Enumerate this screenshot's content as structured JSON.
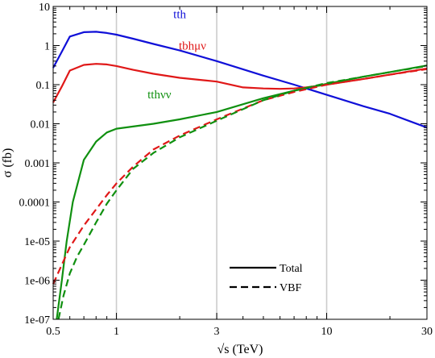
{
  "chart_data": {
    "type": "line",
    "xlabel": "√s (TeV)",
    "ylabel": "σ (fb)",
    "xscale": "log",
    "yscale": "log",
    "xlim": [
      0.5,
      30
    ],
    "ylim": [
      1e-07,
      10
    ],
    "x_ticks": [
      0.5,
      1,
      3,
      10,
      30
    ],
    "x_tick_labels": [
      "0.5",
      "1",
      "3",
      "10",
      "30"
    ],
    "y_ticks": [
      1e-07,
      1e-06,
      1e-05,
      0.0001,
      0.001,
      0.01,
      0.1,
      1,
      10
    ],
    "y_tick_labels": [
      "1e-07",
      "1e-06",
      "1e-05",
      "0.0001",
      "0.001",
      "0.01",
      "0.1",
      "1",
      "10"
    ],
    "vertical_gridlines_at": [
      1,
      3,
      10
    ],
    "legend": {
      "placement": "bottom-center",
      "entries": [
        {
          "label": "Total",
          "linestyle": "solid"
        },
        {
          "label": "VBF",
          "linestyle": "dashed"
        }
      ]
    },
    "colors": {
      "tth": "#1010d8",
      "tbhmuv": "#e01818",
      "tthvv": "#109010"
    },
    "series": [
      {
        "name": "tth",
        "key": "tth",
        "linestyle": "solid",
        "label_at": {
          "x": 2.0,
          "y": 5.0
        },
        "x": [
          0.5,
          0.55,
          0.6,
          0.7,
          0.8,
          0.9,
          1.0,
          1.2,
          1.5,
          2,
          3,
          5,
          7,
          10,
          15,
          20,
          30
        ],
        "y": [
          0.27,
          0.7,
          1.7,
          2.2,
          2.25,
          2.1,
          1.9,
          1.5,
          1.1,
          0.75,
          0.4,
          0.17,
          0.1,
          0.055,
          0.028,
          0.018,
          0.008
        ]
      },
      {
        "name": "tbhμν",
        "key": "tbhmuv",
        "linestyle": "solid",
        "label_at": {
          "x": 2.3,
          "y": 0.78
        },
        "x": [
          0.5,
          0.55,
          0.6,
          0.7,
          0.8,
          0.9,
          1.0,
          1.2,
          1.5,
          2,
          3,
          4,
          5,
          6,
          7,
          8,
          10,
          15,
          20,
          30
        ],
        "y": [
          0.035,
          0.09,
          0.23,
          0.32,
          0.34,
          0.33,
          0.3,
          0.24,
          0.19,
          0.15,
          0.12,
          0.085,
          0.08,
          0.078,
          0.08,
          0.085,
          0.1,
          0.14,
          0.18,
          0.26
        ]
      },
      {
        "name": "tthνν",
        "key": "tthvv",
        "linestyle": "solid",
        "label_at": {
          "x": 1.6,
          "y": 0.045
        },
        "x": [
          0.52,
          0.55,
          0.58,
          0.62,
          0.7,
          0.8,
          0.9,
          1.0,
          1.2,
          1.5,
          2,
          3,
          5,
          7,
          10,
          15,
          20,
          30
        ],
        "y": [
          1e-07,
          1e-06,
          1e-05,
          0.0001,
          0.0012,
          0.0035,
          0.006,
          0.0075,
          0.0085,
          0.01,
          0.013,
          0.02,
          0.045,
          0.07,
          0.105,
          0.16,
          0.21,
          0.31
        ]
      },
      {
        "name": "tbhμν VBF",
        "key": "tbhmuv",
        "linestyle": "dashed",
        "x": [
          0.5,
          0.55,
          0.6,
          0.7,
          0.8,
          0.9,
          1.0,
          1.2,
          1.5,
          2,
          3,
          5,
          7,
          10,
          15,
          20,
          30
        ],
        "y": [
          8e-07,
          2.5e-06,
          7e-06,
          2.5e-05,
          6.5e-05,
          0.00015,
          0.0003,
          0.0008,
          0.0022,
          0.005,
          0.013,
          0.04,
          0.065,
          0.1,
          0.14,
          0.18,
          0.25
        ]
      },
      {
        "name": "tthνν VBF",
        "key": "tthvv",
        "linestyle": "dashed",
        "x": [
          0.53,
          0.56,
          0.6,
          0.65,
          0.7,
          0.8,
          0.9,
          1.0,
          1.2,
          1.5,
          2,
          3,
          5,
          7,
          10,
          15,
          20,
          30
        ],
        "y": [
          1e-07,
          4e-07,
          1.5e-06,
          4e-06,
          8e-06,
          3e-05,
          9e-05,
          0.0002,
          0.0007,
          0.0018,
          0.0045,
          0.012,
          0.04,
          0.07,
          0.11,
          0.16,
          0.21,
          0.3
        ]
      }
    ]
  }
}
